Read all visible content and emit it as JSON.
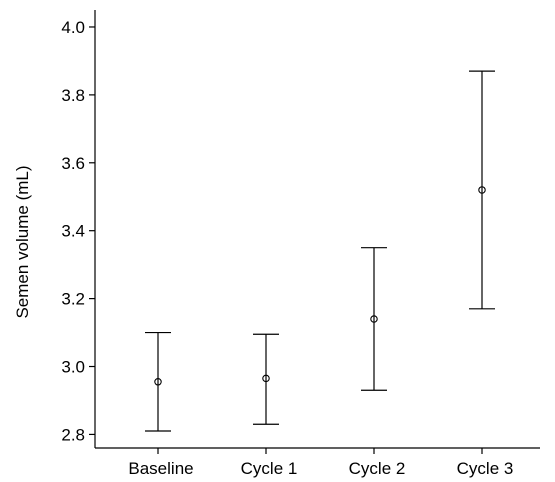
{
  "chart_data": {
    "type": "errorbar",
    "ylabel": "Semen volume (mL)",
    "xlabel": "",
    "ylim": [
      2.76,
      4.05
    ],
    "yticks": [
      "2.8",
      "3.0",
      "3.2",
      "3.4",
      "3.6",
      "3.8",
      "4.0"
    ],
    "ytick_values": [
      2.8,
      3.0,
      3.2,
      3.4,
      3.6,
      3.8,
      4.0
    ],
    "categories": [
      "Baseline",
      "Cycle 1",
      "Cycle 2",
      "Cycle 3"
    ],
    "points": [
      {
        "category": "Baseline",
        "mean": 2.955,
        "lower": 2.81,
        "upper": 3.1
      },
      {
        "category": "Cycle 1",
        "mean": 2.965,
        "lower": 2.83,
        "upper": 3.095
      },
      {
        "category": "Cycle 2",
        "mean": 3.14,
        "lower": 2.93,
        "upper": 3.35
      },
      {
        "category": "Cycle 3",
        "mean": 3.52,
        "lower": 3.17,
        "upper": 3.87
      }
    ],
    "grid": false
  }
}
